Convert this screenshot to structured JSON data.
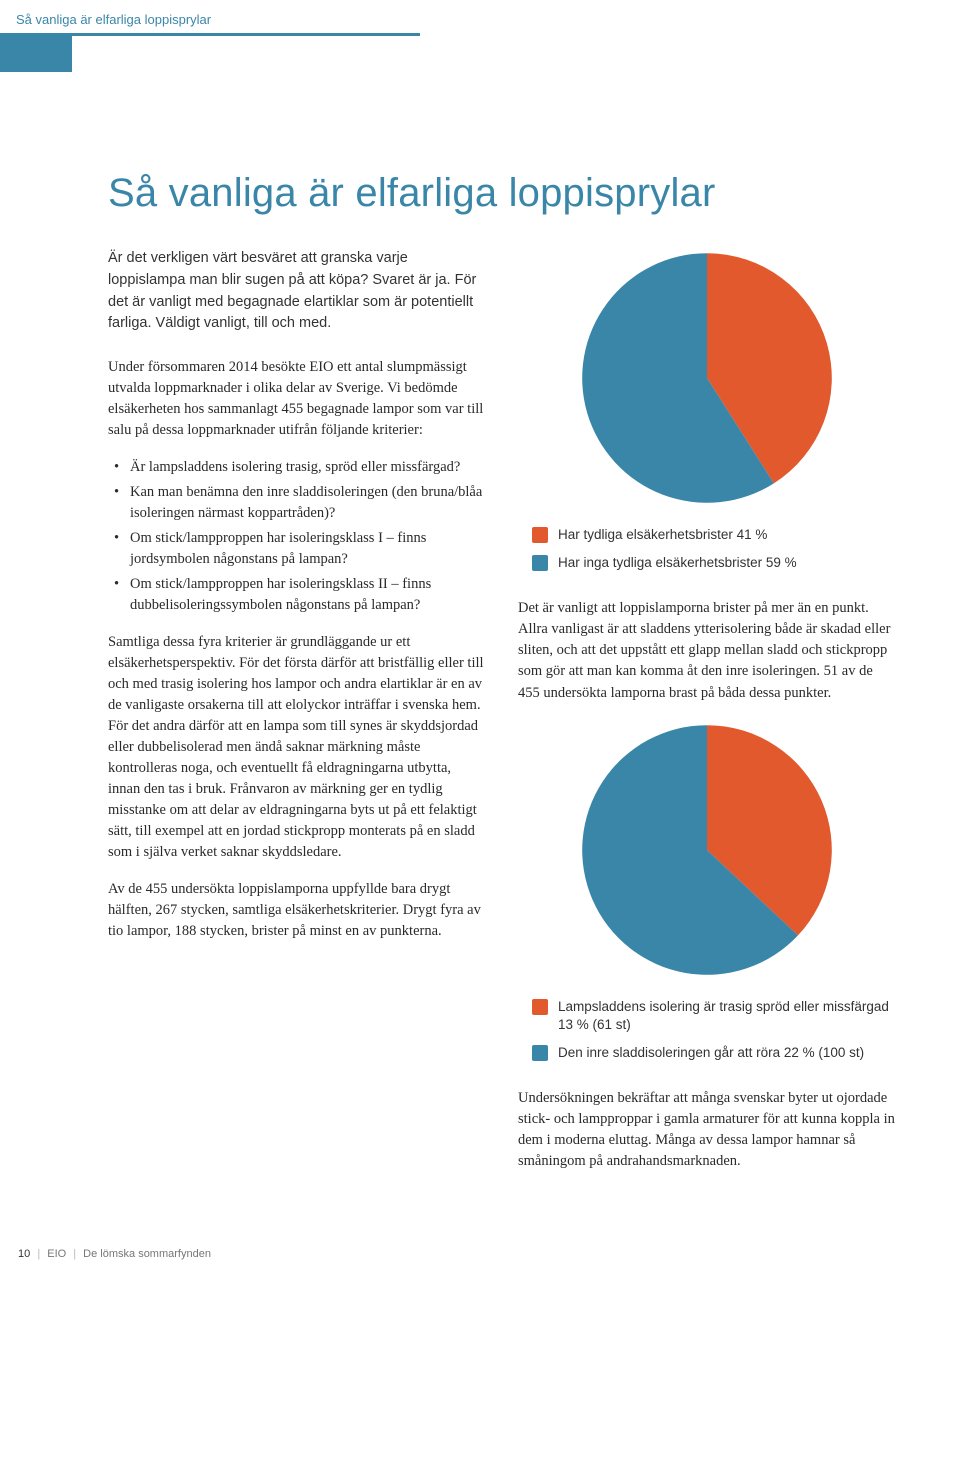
{
  "header": {
    "running_head": "Så vanliga är elfarliga loppisprylar"
  },
  "title": "Så vanliga är elfarliga loppisprylar",
  "left": {
    "lede": "Är det verkligen värt besväret att granska varje loppislampa man blir sugen på att köpa? Svaret är ja. För det är vanligt med begagnade elartiklar som är potentiellt farliga. Väldigt vanligt, till och med.",
    "p1": "Under försommaren 2014 besökte EIO ett antal slumpmässigt utvalda loppmarknader i olika delar av Sverige. Vi bedömde elsäkerheten hos sammanlagt 455 begagnade lampor som var till salu på dessa loppmarknader utifrån följande kriterier:",
    "bullets": [
      "Är lampsladdens isolering trasig, spröd eller missfärgad?",
      "Kan man benämna den inre sladdisoleringen (den bruna/blåa isoleringen närmast koppartråden)?",
      "Om stick/lampproppen har isoleringsklass I – finns jordsymbolen någonstans på lampan?",
      "Om stick/lampproppen har isoleringsklass II – finns dubbelisoleringssymbolen någonstans på lampan?"
    ],
    "p2": "Samtliga dessa fyra kriterier är grundläggande ur ett elsäkerhetsperspektiv. För det första därför att bristfällig eller till och med trasig isolering hos lampor och andra elartiklar är en av de vanligaste orsakerna till att elolyckor inträffar i svenska hem. För det andra därför att en lampa som till synes är skyddsjordad eller dubbelisolerad men ändå saknar märkning måste kontrolleras noga, och eventuellt få eldragningarna utbytta, innan den tas i bruk. Frånvaron av märkning ger en tydlig misstanke om att delar av eldragningarna byts ut på ett felaktigt sätt, till exempel att en jordad stickpropp monterats på en sladd som i själva verket saknar skyddsledare.",
    "p3": "Av de 455 undersökta loppislamporna uppfyllde bara drygt hälften, 267 stycken, samtliga elsäkerhetskriterier. Drygt fyra av tio lampor, 188 stycken, brister på minst en av punkterna."
  },
  "right": {
    "p1": "Det är vanligt att loppislamporna brister på mer än en punkt. Allra vanligast är att sladdens ytterisolering både är skadad eller sliten, och att det uppstått ett glapp mellan sladd och stickpropp som gör att man kan komma åt den inre isoleringen. 51 av de 455 undersökta lamporna brast på båda dessa punkter.",
    "p2": "Undersökningen bekräftar att många svenskar byter ut ojordade stick- och lampproppar i gamla armaturer för att kunna koppla in dem i moderna eluttag. Många av dessa lampor hamnar så småningom på andrahandsmarknaden."
  },
  "chart1": {
    "type": "pie",
    "values": [
      41,
      59
    ],
    "colors": [
      "#e2592e",
      "#3a86a9"
    ],
    "start_angle_deg": -90,
    "background": "#ffffff",
    "stroke": "none",
    "legend": [
      {
        "color": "#e2592e",
        "label": "Har tydliga elsäkerhetsbrister 41 %"
      },
      {
        "color": "#3a86a9",
        "label": "Har inga tydliga elsäkerhetsbrister 59 %"
      }
    ]
  },
  "chart2": {
    "type": "pie",
    "values": [
      37,
      63
    ],
    "colors": [
      "#e2592e",
      "#3a86a9"
    ],
    "start_angle_deg": -90,
    "background": "#ffffff",
    "stroke": "none",
    "legend": [
      {
        "color": "#e2592e",
        "label": "Lampsladdens isolering är trasig spröd eller missfärgad 13 % (61 st)"
      },
      {
        "color": "#3a86a9",
        "label": "Den inre sladdisoleringen går att röra 22 % (100 st)"
      }
    ]
  },
  "footer": {
    "page_number": "10",
    "org": "EIO",
    "doc_title": "De lömska sommarfynden"
  }
}
